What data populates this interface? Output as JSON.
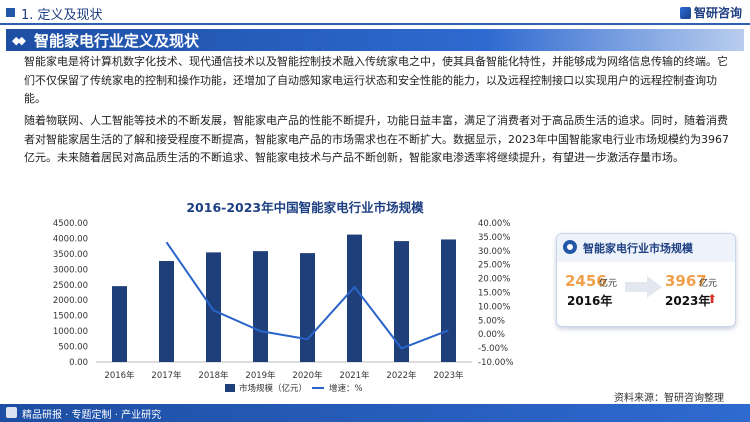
{
  "header": {
    "section": "1. 定义及现状",
    "brand": "智研咨询"
  },
  "title": "智能家电行业定义及现状",
  "paragraphs": [
    "智能家电是将计算机数字化技术、现代通信技术以及智能控制技术融入传统家电之中，使其具备智能化特性，并能够成为网络信息传输的终端。它们不仅保留了传统家电的控制和操作功能，还增加了自动感知家电运行状态和安全性能的能力，以及远程控制接口以实现用户的远程控制查询功能。",
    "随着物联网、人工智能等技术的不断发展，智能家电产品的性能不断提升，功能日益丰富，满足了消费者对于高品质生活的追求。同时，随着消费者对智能家居生活的了解和接受程度不断提高，智能家电产品的市场需求也在不断扩大。数据显示，2023年中国智能家电行业市场规模约为3967亿元。未来随着居民对高品质生活的不断追求、智能家电技术与产品不断创新，智能家电渗透率将继续提升，有望进一步激活存量市场。"
  ],
  "chart_data": {
    "type": "bar",
    "title": "2016-2023年中国智能家电行业市场规模",
    "categories": [
      "2016年",
      "2017年",
      "2018年",
      "2019年",
      "2020年",
      "2021年",
      "2022年",
      "2023年"
    ],
    "series": [
      {
        "name": "市场规模（亿元）",
        "kind": "bar",
        "axis": "left",
        "color": "#1f3f7a",
        "values": [
          2456,
          3269,
          3549,
          3589,
          3525,
          4125,
          3914,
          3967
        ]
      },
      {
        "name": "增速：%",
        "kind": "line",
        "axis": "right",
        "color": "#2a64c9",
        "values": [
          null,
          33.1,
          8.6,
          1.1,
          -1.8,
          17.0,
          -5.1,
          1.4
        ]
      }
    ],
    "ylim_left": [
      0,
      4500
    ],
    "yticks_left": [
      "0.00",
      "500.00",
      "1000.00",
      "1500.00",
      "2000.00",
      "2500.00",
      "3000.00",
      "3500.00",
      "4000.00",
      "4500.00"
    ],
    "ylim_right": [
      -10,
      40
    ],
    "yticks_right": [
      "-10.00%",
      "-5.00%",
      "0.00%",
      "5.00%",
      "10.00%",
      "15.00%",
      "20.00%",
      "25.00%",
      "30.00%",
      "35.00%",
      "40.00%"
    ],
    "legend_position": "bottom",
    "grid": false
  },
  "card": {
    "title": "智能家电行业市场规模",
    "start_value": "2456",
    "start_unit": "亿元",
    "start_year": "2016年",
    "end_value": "3967",
    "end_unit": "亿元",
    "end_year": "2023年",
    "up_arrow": "⬆"
  },
  "footer": {
    "slogan": "精品研报 · 专题定制 · 产业研究",
    "source": "资料来源：智研咨询整理"
  },
  "colors": {
    "primary": "#1e3f82",
    "accent": "#f0a04b",
    "bar": "#1f3f7a",
    "line": "#2a64c9",
    "up": "#d6322a"
  }
}
